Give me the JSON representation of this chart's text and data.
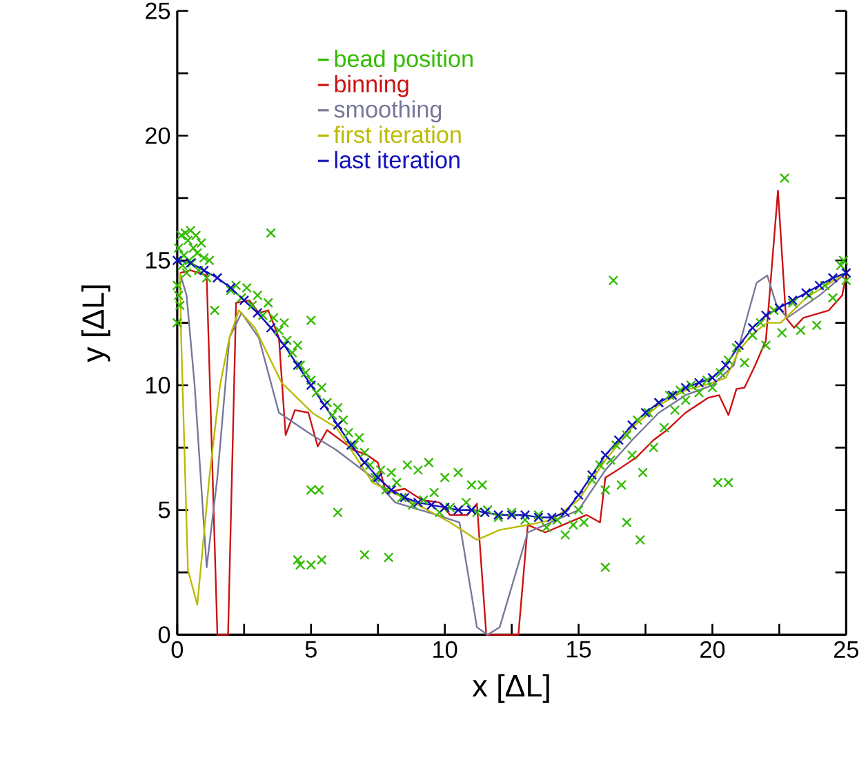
{
  "chart_data": {
    "type": "line",
    "xlabel": "x [ΔL]",
    "ylabel": "y [ΔL]",
    "xlim": [
      0,
      25
    ],
    "ylim": [
      0,
      25
    ],
    "xticks": [
      0,
      {
        "value": 2.5,
        "label": null
      },
      5,
      {
        "value": 7.5,
        "label": null
      },
      10,
      {
        "value": 12.5,
        "label": null
      },
      15,
      {
        "value": 17.5,
        "label": null
      },
      20,
      {
        "value": 22.5,
        "label": null
      },
      25
    ],
    "yticks": [
      0,
      {
        "value": 2.5,
        "label": null
      },
      5,
      {
        "value": 7.5,
        "label": null
      },
      10,
      {
        "value": 12.5,
        "label": null
      },
      15,
      {
        "value": 17.5,
        "label": null
      },
      20,
      {
        "value": 22.5,
        "label": null
      },
      25
    ],
    "grid": false,
    "legend": "top",
    "line_style": "solid",
    "series": [
      {
        "name": "bead position",
        "type": "scatter",
        "marker": "cross",
        "color": "#33bb00",
        "x": [
          0.0,
          0.05,
          0.1,
          0.15,
          0.2,
          0.25,
          0.3,
          0.35,
          0.4,
          0.45,
          0.5,
          0.55,
          0.6,
          0.7,
          0.75,
          0.8,
          0.9,
          1.0,
          1.1,
          1.2,
          1.4,
          0.0,
          0.05,
          2.0,
          2.2,
          2.4,
          2.6,
          2.8,
          3.0,
          3.2,
          3.4,
          3.6,
          3.8,
          4.0,
          4.1,
          4.3,
          4.5,
          4.6,
          4.8,
          5.0,
          5.2,
          5.4,
          5.6,
          5.8,
          6.0,
          6.2,
          6.4,
          6.6,
          6.8,
          7.0,
          7.2,
          7.4,
          7.6,
          7.8,
          8.0,
          8.2,
          8.4,
          8.6,
          8.8,
          9.0,
          9.2,
          9.4,
          9.6,
          9.8,
          10.0,
          10.2,
          10.5,
          10.8,
          11.0,
          11.4,
          11.2,
          11.6,
          12.0,
          12.5,
          13.0,
          13.5,
          13.8,
          14.2,
          14.5,
          14.8,
          15.0,
          15.2,
          15.5,
          15.8,
          16.0,
          16.2,
          16.4,
          16.6,
          16.8,
          17.0,
          17.2,
          17.4,
          17.6,
          17.8,
          18.0,
          18.2,
          18.4,
          18.6,
          18.8,
          19.0,
          19.2,
          19.5,
          19.8,
          20.0,
          20.3,
          20.6,
          20.9,
          21.2,
          21.5,
          21.8,
          22.0,
          22.3,
          22.6,
          23.0,
          23.3,
          23.6,
          23.9,
          24.2,
          24.5,
          24.8,
          25.0,
          24.9,
          3.5,
          5.0,
          4.5,
          4.6,
          5.0,
          5.4,
          5.0,
          5.3,
          6.0,
          7.0,
          7.9,
          16.3,
          22.7,
          16.0,
          20.2,
          20.6,
          16.8,
          17.3
        ],
        "values": [
          14.0,
          15.5,
          13.2,
          16.0,
          14.8,
          15.2,
          16.1,
          14.5,
          15.8,
          15.0,
          16.2,
          14.9,
          15.5,
          16.0,
          15.3,
          14.6,
          15.7,
          15.1,
          14.3,
          15.0,
          13.0,
          12.5,
          13.6,
          13.8,
          14.0,
          13.5,
          13.9,
          13.2,
          13.6,
          12.8,
          13.3,
          12.7,
          12.2,
          12.5,
          11.8,
          11.3,
          11.6,
          10.8,
          10.5,
          10.2,
          9.7,
          9.9,
          9.3,
          8.8,
          9.1,
          8.6,
          8.1,
          7.6,
          7.9,
          7.3,
          6.8,
          6.3,
          6.6,
          5.8,
          6.5,
          6.1,
          5.5,
          6.8,
          5.2,
          6.6,
          5.4,
          6.9,
          5.7,
          4.9,
          6.3,
          5.1,
          6.5,
          5.3,
          6.0,
          6.0,
          4.9,
          5.0,
          4.7,
          4.9,
          4.6,
          4.8,
          4.3,
          4.6,
          4.0,
          4.4,
          5.0,
          4.5,
          6.2,
          6.8,
          5.8,
          7.0,
          7.6,
          6.0,
          8.0,
          7.2,
          8.6,
          6.5,
          8.9,
          7.5,
          9.3,
          8.3,
          9.6,
          9.0,
          9.8,
          9.4,
          10.0,
          9.7,
          10.2,
          9.9,
          10.5,
          11.0,
          11.5,
          10.9,
          12.0,
          12.5,
          11.6,
          13.0,
          12.1,
          13.3,
          12.2,
          13.6,
          12.4,
          14.0,
          13.5,
          14.8,
          14.2,
          15.0,
          16.1,
          12.6,
          3.0,
          2.8,
          2.8,
          3.0,
          5.8,
          5.8,
          4.9,
          3.2,
          3.1,
          14.2,
          18.3,
          2.7,
          6.1,
          6.1,
          4.5,
          3.8
        ]
      },
      {
        "name": "binning",
        "color": "#cc1111",
        "marker": "none",
        "x": [
          0.1,
          0.5,
          1.1,
          1.5,
          1.9,
          2.2,
          2.7,
          3.05,
          3.4,
          3.8,
          4.05,
          4.4,
          4.9,
          5.25,
          5.6,
          6.6,
          7.1,
          7.5,
          7.8,
          8.5,
          9.15,
          9.8,
          10.2,
          10.85,
          11.2,
          11.55,
          12.75,
          13.1,
          13.75,
          15.3,
          15.8,
          16.0,
          16.45,
          17.15,
          17.8,
          18.3,
          19.0,
          19.85,
          20.25,
          20.6,
          20.9,
          21.2,
          21.6,
          22.0,
          22.45,
          22.75,
          23.05,
          23.4,
          24.35,
          24.85,
          25.0
        ],
        "values": [
          14.5,
          14.6,
          14.4,
          0,
          0,
          13.3,
          13.4,
          12.9,
          13.0,
          11.9,
          8.0,
          9.0,
          8.9,
          7.55,
          8.2,
          7.4,
          7.2,
          6.9,
          5.7,
          5.85,
          5.4,
          5.3,
          4.8,
          4.8,
          5.25,
          0,
          0,
          4.4,
          4.1,
          4.8,
          4.5,
          6.3,
          6.6,
          7.1,
          7.8,
          8.2,
          8.9,
          9.5,
          9.6,
          8.8,
          9.85,
          9.9,
          10.8,
          11.8,
          17.8,
          12.7,
          12.3,
          12.7,
          13.0,
          13.6,
          14.4
        ]
      },
      {
        "name": "smoothing",
        "color": "#777799",
        "marker": "none",
        "x": [
          0.1,
          0.35,
          0.65,
          1.1,
          1.5,
          1.95,
          2.4,
          3.05,
          3.45,
          3.8,
          4.9,
          5.95,
          7.3,
          8.15,
          9.7,
          10.55,
          11.2,
          11.6,
          12.05,
          13.1,
          13.75,
          15.0,
          16.0,
          17.0,
          18.0,
          19.0,
          20.0,
          20.8,
          21.65,
          22.05,
          22.4,
          22.8,
          24.0,
          25.0
        ],
        "values": [
          14.5,
          13.6,
          10.0,
          2.7,
          6.3,
          11.9,
          12.9,
          11.9,
          10.3,
          8.9,
          8.1,
          7.4,
          6.3,
          5.3,
          4.8,
          4.5,
          0.3,
          0,
          0.3,
          4.1,
          4.4,
          5.0,
          6.6,
          7.8,
          8.9,
          9.6,
          10.0,
          10.8,
          14.1,
          14.4,
          13.2,
          12.7,
          13.6,
          14.5
        ]
      },
      {
        "name": "first iteration",
        "color": "#bbbb00",
        "marker": "none",
        "x": [
          0.1,
          0.15,
          0.4,
          0.75,
          1.2,
          1.6,
          1.95,
          2.3,
          2.9,
          3.9,
          5.1,
          5.95,
          7.3,
          9.0,
          10.2,
          11.2,
          12.05,
          13.1,
          14.0,
          15.0,
          16.0,
          17.0,
          18.0,
          19.0,
          20.0,
          20.5,
          21.0,
          21.55,
          22.05,
          22.55,
          23.5,
          25.0
        ],
        "values": [
          14.5,
          11.8,
          2.6,
          1.2,
          6.3,
          10.0,
          11.9,
          13.0,
          12.3,
          10.1,
          8.85,
          8.3,
          6.1,
          5.2,
          4.5,
          3.8,
          4.2,
          4.4,
          4.6,
          5.4,
          7.0,
          8.3,
          9.2,
          9.8,
          10.1,
          10.3,
          11.4,
          12.1,
          12.5,
          12.5,
          13.5,
          14.5
        ]
      },
      {
        "name": "last iteration",
        "color": "#1111bb",
        "marker": "cross",
        "x": [
          0,
          0.5,
          1,
          1.5,
          2,
          2.5,
          3,
          3.5,
          4,
          4.5,
          5,
          5.5,
          6,
          6.5,
          7,
          7.5,
          8,
          8.5,
          9,
          9.5,
          10,
          10.5,
          11,
          11.5,
          12,
          12.5,
          13,
          13.5,
          14,
          14.5,
          15,
          15.5,
          16,
          16.5,
          17,
          17.5,
          18,
          18.5,
          19,
          19.5,
          20,
          20.5,
          21,
          21.5,
          22,
          22.5,
          23,
          23.5,
          24,
          24.5,
          25
        ],
        "values": [
          15.0,
          14.9,
          14.6,
          14.3,
          13.9,
          13.4,
          12.9,
          12.3,
          11.6,
          10.8,
          10.0,
          9.2,
          8.4,
          7.6,
          6.9,
          6.3,
          5.8,
          5.5,
          5.3,
          5.2,
          5.1,
          5.0,
          5.0,
          4.9,
          4.8,
          4.8,
          4.8,
          4.7,
          4.7,
          4.9,
          5.6,
          6.4,
          7.2,
          7.8,
          8.4,
          8.9,
          9.3,
          9.6,
          9.9,
          10.1,
          10.3,
          10.8,
          11.6,
          12.3,
          12.8,
          13.1,
          13.4,
          13.7,
          14.0,
          14.3,
          14.5
        ]
      }
    ]
  }
}
